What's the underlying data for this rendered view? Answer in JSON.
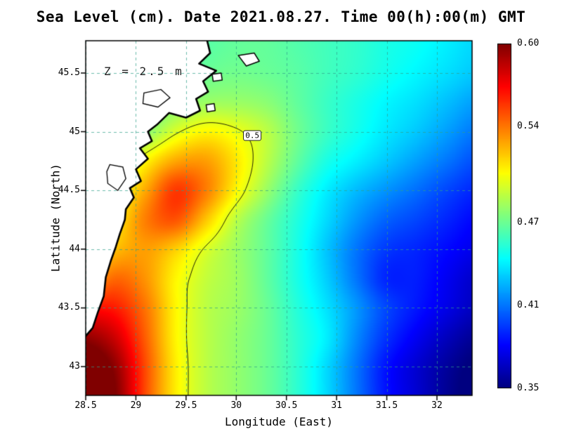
{
  "chart_data": {
    "type": "heatmap",
    "title": "Sea Level (cm). Date 2021.08.27. Time 00(h):00(m) GMT",
    "xlabel": "Longitude (East)",
    "ylabel": "Latitude (North)",
    "annotation": "Z = 2.5 m",
    "xlim": [
      28.5,
      32.35
    ],
    "ylim": [
      42.755,
      45.775
    ],
    "xticks": [
      28.5,
      29,
      29.5,
      30,
      30.5,
      31,
      31.5,
      32
    ],
    "xtick_labels": [
      "28.5",
      "29",
      "29.5",
      "30",
      "30.5",
      "31",
      "31.5",
      "32"
    ],
    "yticks": [
      43,
      43.5,
      44,
      44.5,
      45,
      45.5
    ],
    "ytick_labels": [
      "43",
      "43.5",
      "44",
      "44.5",
      "45",
      "45.5"
    ],
    "grid": true,
    "legend": "colorbar-right",
    "colormap": {
      "name": "jet",
      "min": 0.35,
      "max": 0.6
    },
    "colorbar_ticks": [
      0.6,
      0.54,
      0.47,
      0.41,
      0.35
    ],
    "colorbar_tick_labels": [
      "0.60",
      "0.54",
      "0.47",
      "0.41",
      "0.35"
    ],
    "contour_levels": [
      0.5
    ],
    "contour_label": {
      "text": "0.5",
      "lon": 30.16,
      "lat": 44.97
    },
    "x": [
      28.5,
      28.8,
      29.1,
      29.4,
      29.7,
      30.0,
      30.3,
      30.6,
      30.9,
      31.2,
      31.5,
      31.8,
      32.1,
      32.4
    ],
    "y": [
      42.75,
      43.0,
      43.25,
      43.5,
      43.75,
      44.0,
      44.25,
      44.5,
      44.75,
      45.0,
      45.25,
      45.5,
      45.78
    ],
    "values": [
      [
        0.62,
        0.6,
        0.55,
        0.51,
        0.49,
        0.48,
        0.47,
        0.455,
        0.435,
        0.41,
        0.385,
        0.37,
        0.355,
        0.345
      ],
      [
        0.615,
        0.595,
        0.55,
        0.51,
        0.49,
        0.48,
        0.47,
        0.455,
        0.435,
        0.41,
        0.385,
        0.37,
        0.357,
        0.347
      ],
      [
        0.595,
        0.58,
        0.545,
        0.508,
        0.49,
        0.48,
        0.47,
        0.455,
        0.44,
        0.415,
        0.393,
        0.378,
        0.365,
        0.355
      ],
      [
        0.565,
        0.562,
        0.54,
        0.508,
        0.49,
        0.482,
        0.47,
        0.453,
        0.437,
        0.418,
        0.398,
        0.386,
        0.375,
        0.365
      ],
      [
        0.525,
        0.543,
        0.532,
        0.508,
        0.492,
        0.483,
        0.468,
        0.45,
        0.432,
        0.41,
        0.39,
        0.388,
        0.378,
        0.368
      ],
      [
        0.503,
        0.522,
        0.53,
        0.518,
        0.498,
        0.483,
        0.468,
        0.45,
        0.43,
        0.41,
        0.395,
        0.39,
        0.383,
        0.376
      ],
      [
        0.49,
        0.51,
        0.538,
        0.548,
        0.52,
        0.49,
        0.47,
        0.452,
        0.435,
        0.418,
        0.405,
        0.398,
        0.39,
        0.382
      ],
      [
        0.482,
        0.5,
        0.528,
        0.555,
        0.538,
        0.508,
        0.482,
        0.458,
        0.44,
        0.427,
        0.417,
        0.408,
        0.398,
        0.39
      ],
      [
        0.472,
        0.482,
        0.508,
        0.528,
        0.53,
        0.512,
        0.49,
        0.468,
        0.45,
        0.44,
        0.43,
        0.42,
        0.41,
        0.4
      ],
      [
        0.462,
        0.468,
        0.478,
        0.498,
        0.508,
        0.502,
        0.49,
        0.472,
        0.458,
        0.448,
        0.438,
        0.43,
        0.42,
        0.41
      ],
      [
        0.458,
        0.46,
        0.466,
        0.476,
        0.482,
        0.482,
        0.478,
        0.468,
        0.458,
        0.45,
        0.442,
        0.436,
        0.428,
        0.42
      ],
      [
        0.452,
        0.456,
        0.46,
        0.466,
        0.47,
        0.472,
        0.47,
        0.466,
        0.46,
        0.455,
        0.448,
        0.442,
        0.436,
        0.43
      ],
      [
        0.448,
        0.452,
        0.456,
        0.46,
        0.465,
        0.468,
        0.468,
        0.464,
        0.46,
        0.456,
        0.45,
        0.446,
        0.44,
        0.434
      ]
    ],
    "coastline": [
      [
        29.71,
        45.775
      ],
      [
        29.74,
        45.67
      ],
      [
        29.63,
        45.58
      ],
      [
        29.8,
        45.52
      ],
      [
        29.67,
        45.43
      ],
      [
        29.72,
        45.34
      ],
      [
        29.6,
        45.28
      ],
      [
        29.64,
        45.18
      ],
      [
        29.5,
        45.12
      ],
      [
        29.33,
        45.16
      ],
      [
        29.21,
        45.06
      ],
      [
        29.12,
        45.0
      ],
      [
        29.16,
        44.92
      ],
      [
        29.04,
        44.86
      ],
      [
        29.12,
        44.77
      ],
      [
        29.0,
        44.68
      ],
      [
        29.05,
        44.58
      ],
      [
        28.94,
        44.52
      ],
      [
        28.98,
        44.44
      ],
      [
        28.9,
        44.34
      ],
      [
        28.89,
        44.25
      ],
      [
        28.84,
        44.13
      ],
      [
        28.8,
        44.02
      ],
      [
        28.75,
        43.9
      ],
      [
        28.7,
        43.76
      ],
      [
        28.68,
        43.6
      ],
      [
        28.62,
        43.46
      ],
      [
        28.57,
        43.33
      ],
      [
        28.5,
        43.26
      ]
    ],
    "islands": [
      [
        [
          30.02,
          45.65
        ],
        [
          30.18,
          45.67
        ],
        [
          30.23,
          45.6
        ],
        [
          30.1,
          45.56
        ]
      ],
      [
        [
          29.76,
          45.49
        ],
        [
          29.85,
          45.5
        ],
        [
          29.86,
          45.44
        ],
        [
          29.77,
          45.43
        ]
      ],
      [
        [
          29.7,
          45.23
        ],
        [
          29.78,
          45.24
        ],
        [
          29.79,
          45.18
        ],
        [
          29.71,
          45.17
        ]
      ]
    ],
    "lakes": [
      [
        [
          29.08,
          45.33
        ],
        [
          29.25,
          45.36
        ],
        [
          29.34,
          45.29
        ],
        [
          29.22,
          45.21
        ],
        [
          29.07,
          45.24
        ]
      ],
      [
        [
          28.74,
          44.72
        ],
        [
          28.87,
          44.7
        ],
        [
          28.9,
          44.6
        ],
        [
          28.82,
          44.5
        ],
        [
          28.72,
          44.56
        ],
        [
          28.71,
          44.66
        ]
      ]
    ],
    "colors": {
      "background": "#ffffff",
      "land": "#ffffff",
      "coastline": "#000000",
      "contour": "#000000",
      "grid": "#2f9e8a",
      "frame": "#000000",
      "text": "#000000",
      "colorbar_top": "#800000",
      "colorbar_bottom": "#000080"
    }
  }
}
